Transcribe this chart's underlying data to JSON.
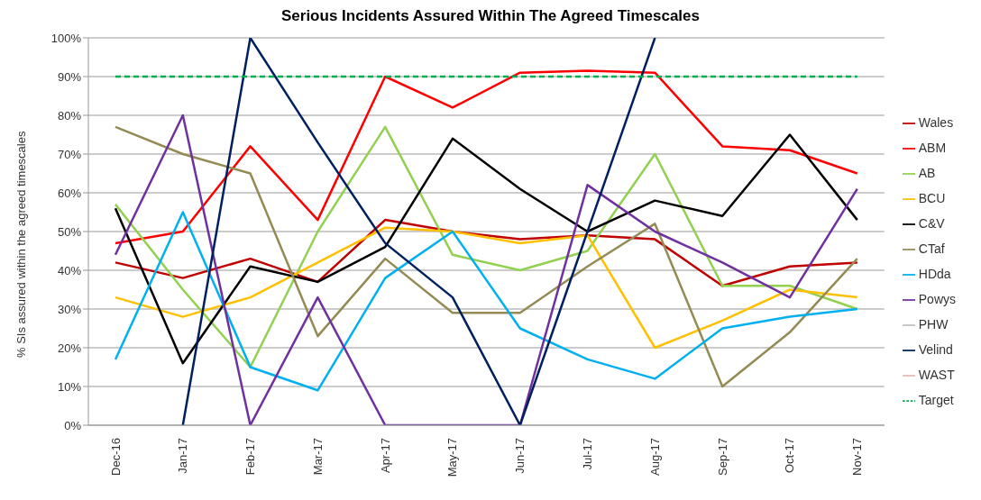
{
  "chart_data": {
    "type": "line",
    "title": "Serious Incidents Assured Within The Agreed Timescales",
    "ylabel": "% SIs assured within the agreed timescales",
    "categories": [
      "Dec-16",
      "Jan-17",
      "Feb-17",
      "Mar-17",
      "Apr-17",
      "May-17",
      "Jun-17",
      "Jul-17",
      "Aug-17",
      "Sep-17",
      "Oct-17",
      "Nov-17"
    ],
    "ylim": [
      0,
      100
    ],
    "yticks": [
      {
        "value": 0,
        "label": "0%"
      },
      {
        "value": 10,
        "label": "10%"
      },
      {
        "value": 20,
        "label": "20%"
      },
      {
        "value": 30,
        "label": "30%"
      },
      {
        "value": 40,
        "label": "40%"
      },
      {
        "value": 50,
        "label": "50%"
      },
      {
        "value": 60,
        "label": "60%"
      },
      {
        "value": 70,
        "label": "70%"
      },
      {
        "value": 80,
        "label": "80%"
      },
      {
        "value": 90,
        "label": "90%"
      },
      {
        "value": 100,
        "label": "100%"
      }
    ],
    "grid": "y",
    "legend": "right",
    "marker": "none",
    "series": [
      {
        "name": "Wales",
        "color": "#c00000",
        "values": [
          42,
          38,
          43,
          37,
          53,
          50,
          48,
          49,
          48,
          36,
          41,
          42
        ]
      },
      {
        "name": "ABM",
        "color": "#ff0000",
        "values": [
          47,
          50,
          72,
          53,
          90,
          82,
          91,
          91.5,
          91,
          72,
          71,
          65
        ]
      },
      {
        "name": "AB",
        "color": "#92d050",
        "values": [
          57,
          35,
          15,
          50,
          77,
          44,
          40,
          45,
          70,
          36,
          36,
          30
        ]
      },
      {
        "name": "BCU",
        "color": "#ffc000",
        "values": [
          33,
          28,
          33,
          42,
          51,
          50,
          47,
          49,
          20,
          27,
          35,
          33
        ]
      },
      {
        "name": "C&V",
        "color": "#000000",
        "values": [
          56,
          16,
          41,
          37,
          46,
          74,
          61,
          50,
          58,
          54,
          75,
          53
        ]
      },
      {
        "name": "CTaf",
        "color": "#948a54",
        "values": [
          77,
          70,
          65,
          23,
          43,
          29,
          29,
          41,
          52,
          10,
          24,
          43
        ]
      },
      {
        "name": "HDda",
        "color": "#00b0f0",
        "values": [
          17,
          55,
          15,
          9,
          38,
          50,
          25,
          17,
          12,
          25,
          28,
          30
        ]
      },
      {
        "name": "Powys",
        "color": "#7030a0",
        "values": [
          44,
          80,
          0,
          33,
          0,
          0,
          0,
          62,
          50,
          42,
          33,
          61
        ]
      },
      {
        "name": "PHW",
        "color": "#bfbfbf",
        "values": [
          null,
          null,
          null,
          null,
          null,
          null,
          null,
          null,
          null,
          null,
          null,
          null
        ]
      },
      {
        "name": "Velind",
        "color": "#002060",
        "values": [
          null,
          0,
          100,
          73,
          47,
          33,
          0,
          50,
          100,
          null,
          null,
          null
        ]
      },
      {
        "name": "WAST",
        "color": "#e6b9b8",
        "values": [
          null,
          null,
          null,
          null,
          null,
          null,
          null,
          null,
          null,
          null,
          null,
          null
        ]
      },
      {
        "name": "Target",
        "color": "#00b050",
        "line_style": "dashed",
        "values": [
          90,
          90,
          90,
          90,
          90,
          90,
          90,
          90,
          90,
          90,
          90,
          90
        ]
      }
    ]
  }
}
